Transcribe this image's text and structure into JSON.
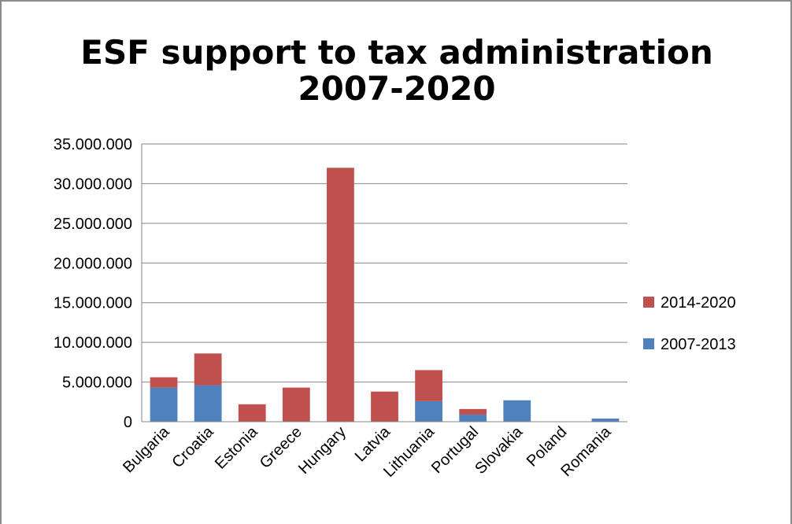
{
  "chart_data": {
    "type": "bar",
    "stacked": true,
    "title_lines": [
      "ESF support to tax administration",
      "2007-2020"
    ],
    "categories": [
      "Bulgaria",
      "Croatia",
      "Estonia",
      "Greece",
      "Hungary",
      "Latvia",
      "Lithuania",
      "Portugal",
      "Slovakia",
      "Poland",
      "Romania"
    ],
    "series": [
      {
        "name": "2007-2013",
        "color": "#4f81bd",
        "values": [
          4300000,
          4600000,
          0,
          0,
          0,
          0,
          2600000,
          900000,
          2700000,
          0,
          400000
        ]
      },
      {
        "name": "2014-2020",
        "color": "#c0504d",
        "values": [
          1300000,
          4000000,
          2200000,
          4300000,
          32000000,
          3800000,
          3900000,
          700000,
          0,
          0,
          0
        ]
      }
    ],
    "ylim": [
      0,
      35000000
    ],
    "y_ticks": [
      0,
      5000000,
      10000000,
      15000000,
      20000000,
      25000000,
      30000000,
      35000000
    ],
    "y_tick_labels": [
      "0",
      "5.000.000",
      "10.000.000",
      "15.000.000",
      "20.000.000",
      "25.000.000",
      "30.000.000",
      "35.000.000"
    ],
    "legend": {
      "position": "right",
      "entries": [
        {
          "name": "2014-2020",
          "color": "#c0504d"
        },
        {
          "name": "2007-2013",
          "color": "#4f81bd"
        }
      ]
    },
    "grid": true,
    "xlabel": "",
    "ylabel": ""
  }
}
